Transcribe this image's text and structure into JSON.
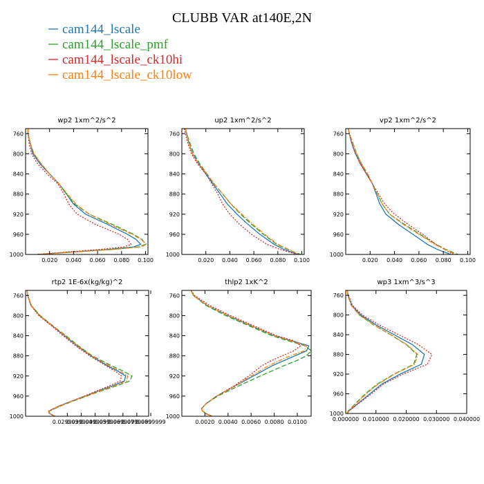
{
  "title": "CLUBB VAR at140E,2N",
  "legend": [
    {
      "label": "cam144_lscale",
      "color": "#1f77b4",
      "dash": "solid"
    },
    {
      "label": "cam144_lscale_pmf",
      "color": "#2ca02c",
      "dash": "longdash"
    },
    {
      "label": "cam144_lscale_ck10hi",
      "color": "#d62728",
      "dash": "dot"
    },
    {
      "label": "cam144_lscale_ck10low",
      "color": "#ff7f0e",
      "dash": "dashdot"
    }
  ],
  "chart_data": [
    {
      "type": "line",
      "title": "wp2  1xm^2/s^2",
      "xlim": [
        0.0,
        0.102
      ],
      "ylim": [
        1000,
        750
      ],
      "xticks": [
        0.02,
        0.04,
        0.06,
        0.08,
        0.1
      ],
      "xtick_labels": [
        "0.020",
        "0.040",
        "0.060",
        "0.080",
        "0.100"
      ],
      "yticks": [
        760,
        800,
        840,
        880,
        920,
        960,
        1000
      ],
      "ytick_labels": [
        "760",
        "800",
        "840",
        "880",
        "920",
        "960",
        "1000"
      ],
      "y": [
        750,
        760,
        780,
        800,
        820,
        840,
        860,
        880,
        900,
        920,
        940,
        960,
        970,
        980,
        985,
        990,
        995,
        1000
      ],
      "series": [
        {
          "values": [
            0.002,
            0.002,
            0.004,
            0.006,
            0.012,
            0.02,
            0.028,
            0.034,
            0.04,
            0.05,
            0.068,
            0.085,
            0.092,
            0.096,
            0.09,
            0.07,
            0.04,
            0.01
          ]
        },
        {
          "values": [
            0.002,
            0.002,
            0.004,
            0.007,
            0.013,
            0.02,
            0.028,
            0.034,
            0.041,
            0.053,
            0.072,
            0.09,
            0.097,
            0.1,
            0.094,
            0.072,
            0.04,
            0.01
          ]
        },
        {
          "values": [
            0.002,
            0.002,
            0.003,
            0.005,
            0.01,
            0.018,
            0.027,
            0.032,
            0.036,
            0.043,
            0.058,
            0.078,
            0.085,
            0.088,
            0.082,
            0.062,
            0.035,
            0.009
          ]
        },
        {
          "values": [
            0.002,
            0.002,
            0.004,
            0.007,
            0.013,
            0.02,
            0.028,
            0.035,
            0.042,
            0.053,
            0.07,
            0.089,
            0.096,
            0.101,
            0.096,
            0.074,
            0.042,
            0.011
          ]
        }
      ]
    },
    {
      "type": "line",
      "title": "up2  1xm^2/s^2",
      "xlim": [
        0.0,
        0.102
      ],
      "ylim": [
        1000,
        750
      ],
      "xticks": [
        0.02,
        0.04,
        0.06,
        0.08,
        0.1
      ],
      "xtick_labels": [
        "0.020",
        "0.040",
        "0.060",
        "0.080",
        "0.100"
      ],
      "yticks": [
        760,
        800,
        840,
        880,
        920,
        960,
        1000
      ],
      "ytick_labels": [
        "760",
        "800",
        "840",
        "880",
        "920",
        "960",
        "1000"
      ],
      "y": [
        750,
        760,
        780,
        800,
        820,
        840,
        860,
        880,
        900,
        920,
        940,
        960,
        980,
        990,
        1000
      ],
      "series": [
        {
          "values": [
            0.003,
            0.004,
            0.006,
            0.009,
            0.014,
            0.02,
            0.026,
            0.032,
            0.038,
            0.046,
            0.055,
            0.065,
            0.077,
            0.085,
            0.097
          ]
        },
        {
          "values": [
            0.003,
            0.004,
            0.007,
            0.01,
            0.015,
            0.021,
            0.027,
            0.034,
            0.041,
            0.049,
            0.058,
            0.068,
            0.079,
            0.088,
            0.099
          ]
        },
        {
          "values": [
            0.002,
            0.003,
            0.005,
            0.008,
            0.013,
            0.02,
            0.025,
            0.03,
            0.034,
            0.04,
            0.048,
            0.058,
            0.071,
            0.082,
            0.096
          ]
        },
        {
          "values": [
            0.003,
            0.004,
            0.006,
            0.009,
            0.014,
            0.021,
            0.027,
            0.034,
            0.041,
            0.05,
            0.059,
            0.069,
            0.08,
            0.089,
            0.098
          ]
        }
      ]
    },
    {
      "type": "line",
      "title": "vp2  1xm^2/s^2",
      "xlim": [
        0.0,
        0.102
      ],
      "ylim": [
        1000,
        750
      ],
      "xticks": [
        0.02,
        0.04,
        0.06,
        0.08,
        0.1
      ],
      "xtick_labels": [
        "0.020",
        "0.040",
        "0.060",
        "0.080",
        "0.100"
      ],
      "yticks": [
        760,
        800,
        840,
        880,
        920,
        960,
        1000
      ],
      "ytick_labels": [
        "760",
        "800",
        "840",
        "880",
        "920",
        "960",
        "1000"
      ],
      "y": [
        750,
        760,
        780,
        800,
        820,
        840,
        860,
        880,
        900,
        920,
        940,
        960,
        980,
        990,
        1000
      ],
      "series": [
        {
          "values": [
            0.002,
            0.003,
            0.005,
            0.008,
            0.012,
            0.017,
            0.022,
            0.025,
            0.028,
            0.033,
            0.043,
            0.055,
            0.067,
            0.075,
            0.086
          ]
        },
        {
          "values": [
            0.002,
            0.003,
            0.006,
            0.009,
            0.013,
            0.018,
            0.022,
            0.026,
            0.03,
            0.036,
            0.048,
            0.061,
            0.074,
            0.082,
            0.092
          ]
        },
        {
          "values": [
            0.002,
            0.003,
            0.005,
            0.008,
            0.012,
            0.017,
            0.022,
            0.027,
            0.032,
            0.04,
            0.051,
            0.063,
            0.074,
            0.081,
            0.088
          ]
        },
        {
          "values": [
            0.002,
            0.003,
            0.006,
            0.009,
            0.013,
            0.018,
            0.022,
            0.026,
            0.03,
            0.036,
            0.047,
            0.06,
            0.073,
            0.081,
            0.09
          ]
        }
      ]
    },
    {
      "type": "line",
      "title": "rtp2  1E-6x(kg/kg)^2",
      "xlim": [
        0.0,
        0.0885
      ],
      "ylim": [
        1000,
        750
      ],
      "xticks": [
        0.03,
        0.04,
        0.05,
        0.06,
        0.07,
        0.08,
        0.09
      ],
      "xtick_labels": [
        "0.0299999",
        "0.0399999",
        "0.0499999",
        "0.0599999",
        "0.0699999",
        "0.0799999",
        "0.0899999"
      ],
      "yticks": [
        760,
        800,
        840,
        880,
        920,
        960,
        1000
      ],
      "ytick_labels": [
        "760",
        "800",
        "840",
        "880",
        "920",
        "960",
        "1000"
      ],
      "y": [
        750,
        760,
        780,
        800,
        820,
        840,
        860,
        880,
        900,
        910,
        920,
        930,
        940,
        950,
        960,
        970,
        980,
        990,
        995,
        1000
      ],
      "series": [
        {
          "values": [
            0.0011,
            0.0015,
            0.004,
            0.01,
            0.019,
            0.028,
            0.037,
            0.047,
            0.059,
            0.066,
            0.072,
            0.071,
            0.062,
            0.052,
            0.043,
            0.033,
            0.024,
            0.0165,
            0.0175,
            0.021
          ]
        },
        {
          "values": [
            0.0011,
            0.0015,
            0.0042,
            0.0105,
            0.0195,
            0.029,
            0.038,
            0.048,
            0.062,
            0.07,
            0.0765,
            0.075,
            0.065,
            0.054,
            0.044,
            0.034,
            0.025,
            0.017,
            0.0175,
            0.021
          ]
        },
        {
          "values": [
            0.0011,
            0.0014,
            0.0038,
            0.0095,
            0.0185,
            0.027,
            0.036,
            0.046,
            0.058,
            0.064,
            0.069,
            0.068,
            0.06,
            0.051,
            0.042,
            0.033,
            0.024,
            0.0162,
            0.0172,
            0.0215
          ]
        },
        {
          "values": [
            0.0011,
            0.0015,
            0.0041,
            0.0102,
            0.0192,
            0.0285,
            0.0375,
            0.0475,
            0.0605,
            0.0675,
            0.0735,
            0.0725,
            0.0635,
            0.053,
            0.0435,
            0.0335,
            0.0245,
            0.0166,
            0.0174,
            0.0212
          ]
        }
      ]
    },
    {
      "type": "line",
      "title": "thlp2  1xK^2",
      "xlim": [
        0.0,
        0.0112
      ],
      "ylim": [
        1000,
        750
      ],
      "xticks": [
        0.002,
        0.004,
        0.006,
        0.008,
        0.01
      ],
      "xtick_labels": [
        "0.0020",
        "0.0040",
        "0.0060",
        "0.0080",
        "0.0100"
      ],
      "yticks": [
        760,
        800,
        840,
        880,
        920,
        960,
        1000
      ],
      "ytick_labels": [
        "760",
        "800",
        "840",
        "880",
        "920",
        "960",
        "1000"
      ],
      "y": [
        750,
        760,
        780,
        800,
        820,
        840,
        850,
        860,
        870,
        880,
        890,
        900,
        920,
        940,
        960,
        975,
        985,
        990,
        995,
        1000
      ],
      "series": [
        {
          "values": [
            0.0008,
            0.001,
            0.0022,
            0.004,
            0.006,
            0.008,
            0.0095,
            0.011,
            0.0108,
            0.0098,
            0.0088,
            0.0078,
            0.0062,
            0.0046,
            0.003,
            0.0021,
            0.0017,
            0.0018,
            0.0021,
            0.0026
          ]
        },
        {
          "values": [
            0.0008,
            0.001,
            0.0021,
            0.0038,
            0.0058,
            0.0078,
            0.0092,
            0.0107,
            0.0112,
            0.0108,
            0.0099,
            0.0088,
            0.0068,
            0.0049,
            0.0031,
            0.0021,
            0.0017,
            0.0018,
            0.0021,
            0.0027
          ]
        },
        {
          "values": [
            0.0008,
            0.0011,
            0.0024,
            0.0042,
            0.0062,
            0.0082,
            0.0097,
            0.0103,
            0.0097,
            0.0087,
            0.0077,
            0.0069,
            0.0058,
            0.0045,
            0.003,
            0.0021,
            0.0017,
            0.0018,
            0.0021,
            0.0026
          ]
        },
        {
          "values": [
            0.0008,
            0.001,
            0.0022,
            0.004,
            0.006,
            0.008,
            0.0094,
            0.0108,
            0.0106,
            0.0094,
            0.0084,
            0.0075,
            0.006,
            0.0046,
            0.003,
            0.0021,
            0.0017,
            0.0018,
            0.0021,
            0.0026
          ]
        }
      ]
    },
    {
      "type": "line",
      "title": "wp3  1xm^3/s^3",
      "xlim": [
        0.0,
        0.04
      ],
      "ylim": [
        1000,
        750
      ],
      "xticks": [
        0.0,
        0.01,
        0.02,
        0.03,
        0.04
      ],
      "xtick_labels": [
        "0.000000",
        "0.010000",
        "0.020000",
        "0.030000",
        "0.040000"
      ],
      "yticks": [
        760,
        800,
        840,
        880,
        920,
        960,
        1000
      ],
      "ytick_labels": [
        "760",
        "800",
        "840",
        "880",
        "920",
        "960",
        "1000"
      ],
      "y": [
        750,
        760,
        780,
        800,
        820,
        840,
        860,
        880,
        900,
        920,
        940,
        960,
        980,
        990,
        995,
        1000
      ],
      "series": [
        {
          "values": [
            0.0005,
            0.0008,
            0.002,
            0.005,
            0.01,
            0.016,
            0.022,
            0.026,
            0.025,
            0.018,
            0.012,
            0.008,
            0.004,
            0.002,
            0.001,
            0.0005
          ]
        },
        {
          "values": [
            0.0005,
            0.0007,
            0.0018,
            0.0045,
            0.0092,
            0.0148,
            0.02,
            0.0235,
            0.0225,
            0.016,
            0.0105,
            0.0065,
            0.0032,
            0.0016,
            0.0008,
            0.0004
          ]
        },
        {
          "values": [
            0.0005,
            0.0009,
            0.0022,
            0.0055,
            0.011,
            0.0175,
            0.024,
            0.0285,
            0.027,
            0.019,
            0.0125,
            0.0085,
            0.0042,
            0.0021,
            0.001,
            0.0005
          ]
        },
        {
          "values": [
            0.0005,
            0.0007,
            0.0018,
            0.0046,
            0.0093,
            0.0149,
            0.0202,
            0.0238,
            0.0228,
            0.0162,
            0.0108,
            0.0068,
            0.0034,
            0.0017,
            0.0008,
            0.0004
          ]
        }
      ]
    }
  ]
}
